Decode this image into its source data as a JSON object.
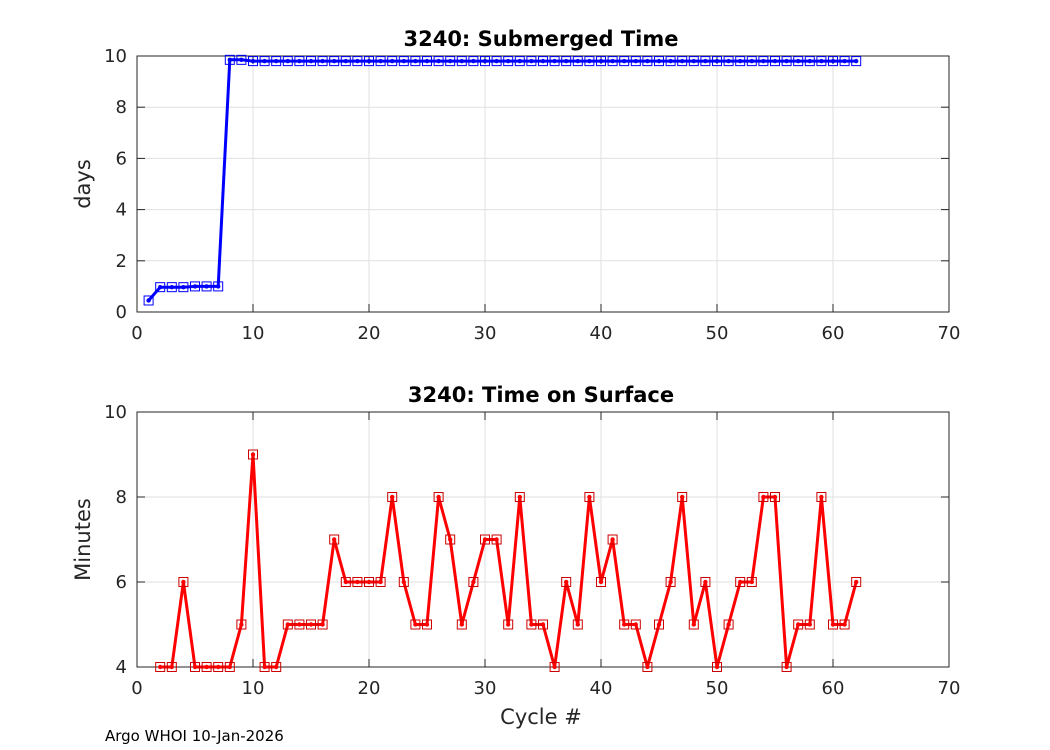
{
  "footer": "Argo WHOI 10-Jan-2026",
  "chart_data": [
    {
      "type": "line",
      "title": "3240: Submerged Time",
      "xlabel": "",
      "ylabel": "days",
      "xlim": [
        0,
        70
      ],
      "ylim": [
        0,
        10
      ],
      "xticks": [
        0,
        10,
        20,
        30,
        40,
        50,
        60,
        70
      ],
      "yticks": [
        0,
        2,
        4,
        6,
        8,
        10
      ],
      "grid": true,
      "color": "#0000ff",
      "marker_color": "#0000ff",
      "series": [
        {
          "name": "Submerged Time",
          "x": [
            1,
            2,
            3,
            4,
            5,
            6,
            7,
            8,
            9,
            10,
            11,
            12,
            13,
            14,
            15,
            16,
            17,
            18,
            19,
            20,
            21,
            22,
            23,
            24,
            25,
            26,
            27,
            28,
            29,
            30,
            31,
            32,
            33,
            34,
            35,
            36,
            37,
            38,
            39,
            40,
            41,
            42,
            43,
            44,
            45,
            46,
            47,
            48,
            49,
            50,
            51,
            52,
            53,
            54,
            55,
            56,
            57,
            58,
            59,
            60,
            61,
            62
          ],
          "y": [
            0.45,
            0.97,
            0.97,
            0.97,
            1.0,
            1.0,
            1.0,
            9.85,
            9.85,
            9.8,
            9.8,
            9.8,
            9.8,
            9.8,
            9.8,
            9.8,
            9.8,
            9.8,
            9.8,
            9.8,
            9.8,
            9.8,
            9.8,
            9.8,
            9.8,
            9.8,
            9.8,
            9.8,
            9.8,
            9.8,
            9.8,
            9.8,
            9.8,
            9.8,
            9.8,
            9.8,
            9.8,
            9.8,
            9.8,
            9.8,
            9.8,
            9.8,
            9.8,
            9.8,
            9.8,
            9.8,
            9.8,
            9.8,
            9.8,
            9.8,
            9.8,
            9.8,
            9.8,
            9.8,
            9.8,
            9.8,
            9.8,
            9.8,
            9.8,
            9.8,
            9.8,
            9.8
          ]
        }
      ]
    },
    {
      "type": "line",
      "title": "3240: Time on Surface",
      "xlabel": "Cycle #",
      "ylabel": "Minutes",
      "xlim": [
        0,
        70
      ],
      "ylim": [
        4,
        10
      ],
      "xticks": [
        0,
        10,
        20,
        30,
        40,
        50,
        60,
        70
      ],
      "yticks": [
        4,
        6,
        8,
        10
      ],
      "grid": true,
      "color": "#ff0000",
      "marker_color": "#cc0000",
      "series": [
        {
          "name": "Time on Surface",
          "x": [
            2,
            3,
            4,
            5,
            6,
            7,
            8,
            9,
            10,
            11,
            12,
            13,
            14,
            15,
            16,
            17,
            18,
            19,
            20,
            21,
            22,
            23,
            24,
            25,
            26,
            27,
            28,
            29,
            30,
            31,
            32,
            33,
            34,
            35,
            36,
            37,
            38,
            39,
            40,
            41,
            42,
            43,
            44,
            45,
            46,
            47,
            48,
            49,
            50,
            51,
            52,
            53,
            54,
            55,
            56,
            57,
            58,
            59,
            60,
            61,
            62
          ],
          "y": [
            4,
            4,
            6,
            4,
            4,
            4,
            4,
            5,
            9,
            4,
            4,
            5,
            5,
            5,
            5,
            7,
            6,
            6,
            6,
            6,
            8,
            6,
            5,
            5,
            8,
            7,
            5,
            6,
            7,
            7,
            5,
            8,
            5,
            5,
            4,
            6,
            5,
            8,
            6,
            7,
            5,
            5,
            4,
            5,
            6,
            8,
            5,
            6,
            4,
            5,
            6,
            6,
            8,
            8,
            4,
            5,
            5,
            8,
            5,
            5,
            6
          ]
        }
      ]
    }
  ]
}
